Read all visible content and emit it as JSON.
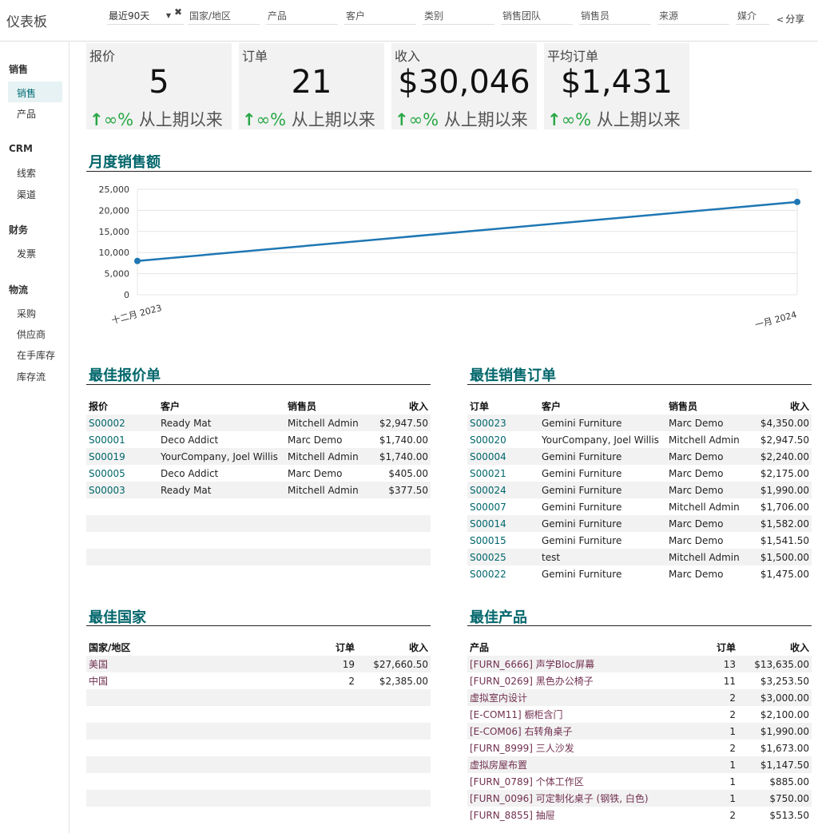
{
  "app": {
    "title": "仪表板"
  },
  "filters": {
    "period": "最近90天",
    "country": "国家/地区",
    "product": "产品",
    "customer": "客户",
    "category": "类别",
    "sales_team": "销售团队",
    "salesperson": "销售员",
    "source": "来源",
    "medium": "媒介"
  },
  "share_label": "分享",
  "sidebar": {
    "sales_head": "销售",
    "sales_items": [
      "销售",
      "产品"
    ],
    "crm_head": "CRM",
    "crm_items": [
      "线索",
      "渠道"
    ],
    "finance_head": "财务",
    "finance_items": [
      "发票"
    ],
    "logistics_head": "物流",
    "logistics_items": [
      "采购",
      "供应商",
      "在手库存",
      "库存流"
    ]
  },
  "kpis": [
    {
      "label": "报价",
      "value": "5",
      "pct": "∞%",
      "since": "从上期以来"
    },
    {
      "label": "订单",
      "value": "21",
      "pct": "∞%",
      "since": "从上期以来"
    },
    {
      "label": "收入",
      "value": "$30,046",
      "pct": "∞%",
      "since": "从上期以来"
    },
    {
      "label": "平均订单",
      "value": "$1,431",
      "pct": "∞%",
      "since": "从上期以来"
    }
  ],
  "chart_title": "月度销售额",
  "chart_data": {
    "type": "line",
    "categories": [
      "十二月 2023",
      "一月 2024"
    ],
    "values": [
      8000,
      22000
    ],
    "y_ticks": [
      "0",
      "5,000",
      "10,000",
      "15,000",
      "20,000",
      "25,000"
    ],
    "ylim": [
      0,
      25000
    ],
    "grid": true,
    "color": "#1f77b4"
  },
  "quotes": {
    "title": "最佳报价单",
    "headers": [
      "报价",
      "客户",
      "销售员",
      "收入"
    ],
    "rows": [
      [
        "S00002",
        "Ready Mat",
        "Mitchell Admin",
        "$2,947.50"
      ],
      [
        "S00001",
        "Deco Addict",
        "Marc Demo",
        "$1,740.00"
      ],
      [
        "S00019",
        "YourCompany, Joel Willis",
        "Mitchell Admin",
        "$1,740.00"
      ],
      [
        "S00005",
        "Deco Addict",
        "Marc Demo",
        "$405.00"
      ],
      [
        "S00003",
        "Ready Mat",
        "Mitchell Admin",
        "$377.50"
      ]
    ]
  },
  "orders": {
    "title": "最佳销售订单",
    "headers": [
      "订单",
      "客户",
      "销售员",
      "收入"
    ],
    "rows": [
      [
        "S00023",
        "Gemini Furniture",
        "Marc Demo",
        "$4,350.00"
      ],
      [
        "S00020",
        "YourCompany, Joel Willis",
        "Mitchell Admin",
        "$2,947.50"
      ],
      [
        "S00004",
        "Gemini Furniture",
        "Marc Demo",
        "$2,240.00"
      ],
      [
        "S00021",
        "Gemini Furniture",
        "Marc Demo",
        "$2,175.00"
      ],
      [
        "S00024",
        "Gemini Furniture",
        "Marc Demo",
        "$1,990.00"
      ],
      [
        "S00007",
        "Gemini Furniture",
        "Mitchell Admin",
        "$1,706.00"
      ],
      [
        "S00014",
        "Gemini Furniture",
        "Marc Demo",
        "$1,582.00"
      ],
      [
        "S00015",
        "Gemini Furniture",
        "Marc Demo",
        "$1,541.50"
      ],
      [
        "S00025",
        "test",
        "Mitchell Admin",
        "$1,500.00"
      ],
      [
        "S00022",
        "Gemini Furniture",
        "Marc Demo",
        "$1,475.00"
      ]
    ]
  },
  "countries": {
    "title": "最佳国家",
    "headers": [
      "国家/地区",
      "订单",
      "收入"
    ],
    "rows": [
      [
        "美国",
        "19",
        "$27,660.50"
      ],
      [
        "中国",
        "2",
        "$2,385.00"
      ]
    ]
  },
  "products": {
    "title": "最佳产品",
    "headers": [
      "产品",
      "订单",
      "收入"
    ],
    "rows": [
      [
        "[FURN_6666] 声学Bloc屏幕",
        "13",
        "$13,635.00"
      ],
      [
        "[FURN_0269] 黑色办公椅子",
        "11",
        "$3,253.50"
      ],
      [
        "虚拟室内设计",
        "2",
        "$3,000.00"
      ],
      [
        "[E-COM11] 橱柜含门",
        "2",
        "$2,100.00"
      ],
      [
        "[E-COM06] 右转角桌子",
        "1",
        "$1,990.00"
      ],
      [
        "[FURN_8999] 三人沙发",
        "2",
        "$1,673.00"
      ],
      [
        "虚拟房屋布置",
        "1",
        "$1,147.50"
      ],
      [
        "[FURN_0789] 个体工作区",
        "1",
        "$885.00"
      ],
      [
        "[FURN_0096] 可定制化桌子 (钢铁, 白色)",
        "1",
        "$750.00"
      ],
      [
        "[FURN_8855] 抽屉",
        "2",
        "$513.50"
      ]
    ]
  }
}
